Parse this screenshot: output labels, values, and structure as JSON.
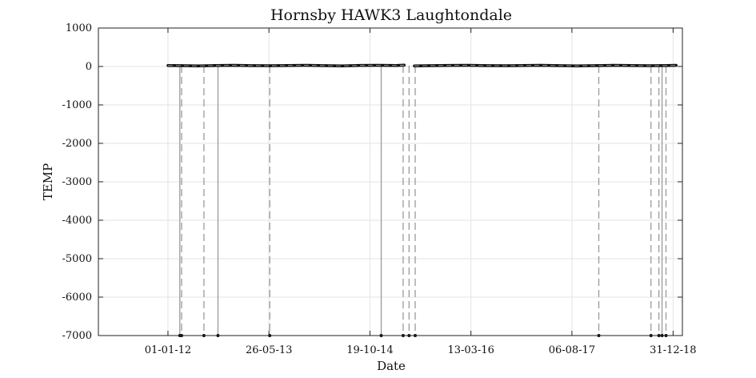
{
  "chart_data": {
    "type": "line",
    "title": "Hornsby HAWK3 Laughtondale",
    "xlabel": "Date",
    "ylabel": "TEMP",
    "x_tick_labels": [
      "01-01-12",
      "26-05-13",
      "19-10-14",
      "13-03-16",
      "06-08-17",
      "31-12-18"
    ],
    "x_ticks": [
      "2012-01-01",
      "2013-05-26",
      "2014-10-19",
      "2016-03-13",
      "2017-08-06",
      "2018-12-31"
    ],
    "xlim": [
      "2011-01-14",
      "2019-02-16"
    ],
    "ylim": [
      -7000,
      1000
    ],
    "y_ticks": [
      1000,
      0,
      -1000,
      -2000,
      -3000,
      -4000,
      -5000,
      -6000,
      -7000
    ],
    "grid": true,
    "colors": {
      "series": "#111111",
      "spikes": "#9a9a9a"
    },
    "series": [
      {
        "x": [
          "2012-01-01",
          "2012-03-01",
          "2012-06-01",
          "2012-09-01",
          "2012-12-01",
          "2013-03-01",
          "2013-06-01",
          "2013-09-01",
          "2013-12-01",
          "2014-03-01",
          "2014-06-01",
          "2014-09-01",
          "2014-12-01",
          "2015-03-01",
          "2015-04-10",
          "2015-04-20",
          "2015-06-01",
          "2015-09-01",
          "2015-12-01",
          "2016-03-01",
          "2016-06-01",
          "2016-09-01",
          "2016-12-01",
          "2017-03-01",
          "2017-06-01",
          "2017-09-01",
          "2017-12-01",
          "2018-03-01",
          "2018-06-01",
          "2018-09-01",
          "2018-12-01",
          "2019-01-15"
        ],
        "y": [
          25,
          22,
          15,
          25,
          30,
          22,
          18,
          25,
          30,
          22,
          15,
          28,
          30,
          25,
          35,
          null,
          15,
          22,
          28,
          30,
          22,
          18,
          25,
          30,
          22,
          15,
          22,
          30,
          25,
          18,
          25,
          30
        ]
      }
    ],
    "drops": [
      {
        "date": "2012-03-01",
        "y": -7000,
        "style": "solid"
      },
      {
        "date": "2012-03-10",
        "y": -7000,
        "style": "dashed"
      },
      {
        "date": "2012-07-01",
        "y": -7000,
        "style": "dashed"
      },
      {
        "date": "2012-09-10",
        "y": -7000,
        "style": "solid"
      },
      {
        "date": "2013-05-30",
        "y": -7000,
        "style": "dashed"
      },
      {
        "date": "2014-12-15",
        "y": -7000,
        "style": "solid"
      },
      {
        "date": "2015-04-05",
        "y": -7000,
        "style": "dashed"
      },
      {
        "date": "2015-05-05",
        "y": -7000,
        "style": "dashed"
      },
      {
        "date": "2015-06-05",
        "y": -7000,
        "style": "dashed"
      },
      {
        "date": "2017-12-20",
        "y": -7000,
        "style": "dashed"
      },
      {
        "date": "2018-09-10",
        "y": -7000,
        "style": "dashed"
      },
      {
        "date": "2018-10-20",
        "y": -7000,
        "style": "dashed"
      },
      {
        "date": "2018-11-05",
        "y": -7000,
        "style": "solid"
      },
      {
        "date": "2018-11-25",
        "y": -7000,
        "style": "dashed"
      }
    ]
  }
}
